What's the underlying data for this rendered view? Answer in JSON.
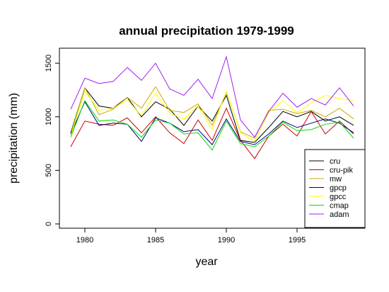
{
  "chart_data": {
    "type": "line",
    "title": "annual precipitation 1979-1999",
    "xlabel": "year",
    "ylabel": "precipitation (mm)",
    "x": [
      1979,
      1980,
      1981,
      1982,
      1983,
      1984,
      1985,
      1986,
      1987,
      1988,
      1989,
      1990,
      1991,
      1992,
      1993,
      1994,
      1995,
      1996,
      1997,
      1998,
      1999
    ],
    "xlim": [
      1978.2,
      1999.8
    ],
    "ylim": [
      -40,
      1640
    ],
    "x_ticks": [
      1980,
      1985,
      1990,
      1995
    ],
    "x_tick_labels": [
      "1980",
      "1985",
      "1990",
      "1995"
    ],
    "y_ticks": [
      0,
      500,
      1000,
      1500
    ],
    "y_tick_labels": [
      "0",
      "500",
      "1000",
      "1500"
    ],
    "grid": false,
    "legend_position": "bottom-right",
    "series": [
      {
        "name": "cru",
        "color": "#000000",
        "values": [
          850,
          1270,
          1100,
          1080,
          1180,
          1000,
          1140,
          1070,
          920,
          1100,
          960,
          1200,
          780,
          760,
          900,
          1050,
          1000,
          1050,
          960,
          1000,
          920
        ]
      },
      {
        "name": "cru-pik",
        "color": "#cc0000",
        "values": [
          720,
          960,
          930,
          920,
          990,
          850,
          1000,
          850,
          750,
          970,
          780,
          1080,
          780,
          610,
          820,
          930,
          820,
          1050,
          840,
          960,
          840
        ]
      },
      {
        "name": "mw",
        "color": "#ccaa00",
        "values": [
          840,
          1270,
          1020,
          1070,
          1180,
          1080,
          1280,
          1060,
          1040,
          1120,
          920,
          1230,
          860,
          800,
          1060,
          1070,
          1030,
          1060,
          1000,
          1080,
          980
        ]
      },
      {
        "name": "gpcp",
        "color": "#000080",
        "values": [
          840,
          1140,
          920,
          940,
          930,
          770,
          990,
          940,
          860,
          880,
          740,
          980,
          770,
          740,
          840,
          960,
          900,
          940,
          980,
          940,
          850
        ]
      },
      {
        "name": "gpcc",
        "color": "#ffff00",
        "values": [
          820,
          1240,
          1060,
          1080,
          1160,
          1010,
          1220,
          1030,
          980,
          1100,
          880,
          1240,
          850,
          770,
          1040,
          1150,
          1040,
          1130,
          1200,
          1170,
          1150
        ]
      },
      {
        "name": "cmap",
        "color": "#00dd00",
        "values": [
          810,
          1150,
          960,
          970,
          930,
          810,
          970,
          940,
          840,
          850,
          690,
          960,
          750,
          720,
          820,
          950,
          870,
          880,
          930,
          950,
          800
        ]
      },
      {
        "name": "adam",
        "color": "#a020f0",
        "values": [
          1070,
          1360,
          1310,
          1330,
          1460,
          1340,
          1500,
          1260,
          1200,
          1350,
          1170,
          1560,
          970,
          810,
          1050,
          1220,
          1090,
          1170,
          1110,
          1270,
          1100
        ]
      }
    ]
  }
}
